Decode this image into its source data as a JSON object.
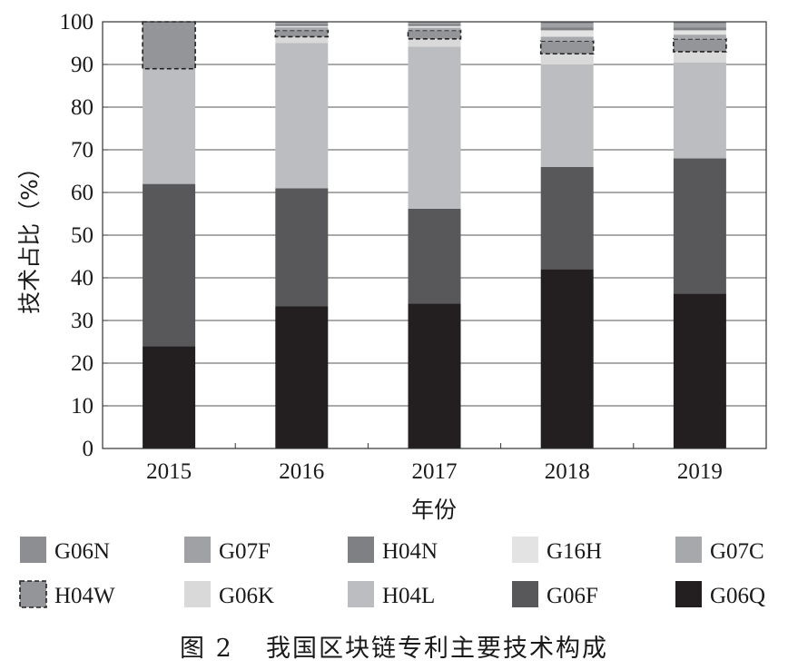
{
  "chart_data": {
    "type": "bar",
    "stacked": true,
    "title": "",
    "xlabel": "年份",
    "ylabel": "技术占比（%）",
    "ylim": [
      0,
      100
    ],
    "yticks": [
      0,
      10,
      20,
      30,
      40,
      50,
      60,
      70,
      80,
      90,
      100
    ],
    "categories": [
      "2015",
      "2016",
      "2017",
      "2018",
      "2019"
    ],
    "grid": "horizontal",
    "legend_position": "bottom",
    "series": [
      {
        "name": "G06Q",
        "color": "#231f20",
        "values": [
          24,
          33.3,
          34,
          42,
          36.3
        ]
      },
      {
        "name": "G06F",
        "color": "#58585a",
        "values": [
          38,
          27.7,
          22.2,
          24,
          31.7
        ]
      },
      {
        "name": "H04L",
        "color": "#bcbdc0",
        "values": [
          27,
          34,
          38,
          24,
          22.5
        ]
      },
      {
        "name": "G06K",
        "color": "#d9d9da",
        "values": [
          0,
          1.5,
          1.8,
          2.5,
          2.5
        ]
      },
      {
        "name": "H04W",
        "color": "#939598",
        "dashed": true,
        "values": [
          11,
          1.5,
          2,
          3,
          3
        ]
      },
      {
        "name": "G07C",
        "color": "#a6a8ab",
        "values": [
          0,
          0.7,
          0.6,
          1,
          1
        ]
      },
      {
        "name": "G16H",
        "color": "#e3e3e4",
        "values": [
          0,
          0.3,
          0.4,
          1.5,
          1
        ]
      },
      {
        "name": "H04N",
        "color": "#7f8083",
        "values": [
          0,
          0.5,
          0.5,
          0.7,
          0.7
        ]
      },
      {
        "name": "G07F",
        "color": "#9fa1a4",
        "values": [
          0,
          0.3,
          0.3,
          0.8,
          0.8
        ]
      },
      {
        "name": "G06N",
        "color": "#8d8e91",
        "values": [
          0,
          0.2,
          0.2,
          0.5,
          0.5
        ]
      }
    ],
    "legend_order": [
      "G06N",
      "G07F",
      "H04N",
      "G16H",
      "G07C",
      "H04W",
      "G06K",
      "H04L",
      "G06F",
      "G06Q"
    ]
  },
  "caption": {
    "label": "图 2",
    "text": "我国区块链专利主要技术构成"
  }
}
